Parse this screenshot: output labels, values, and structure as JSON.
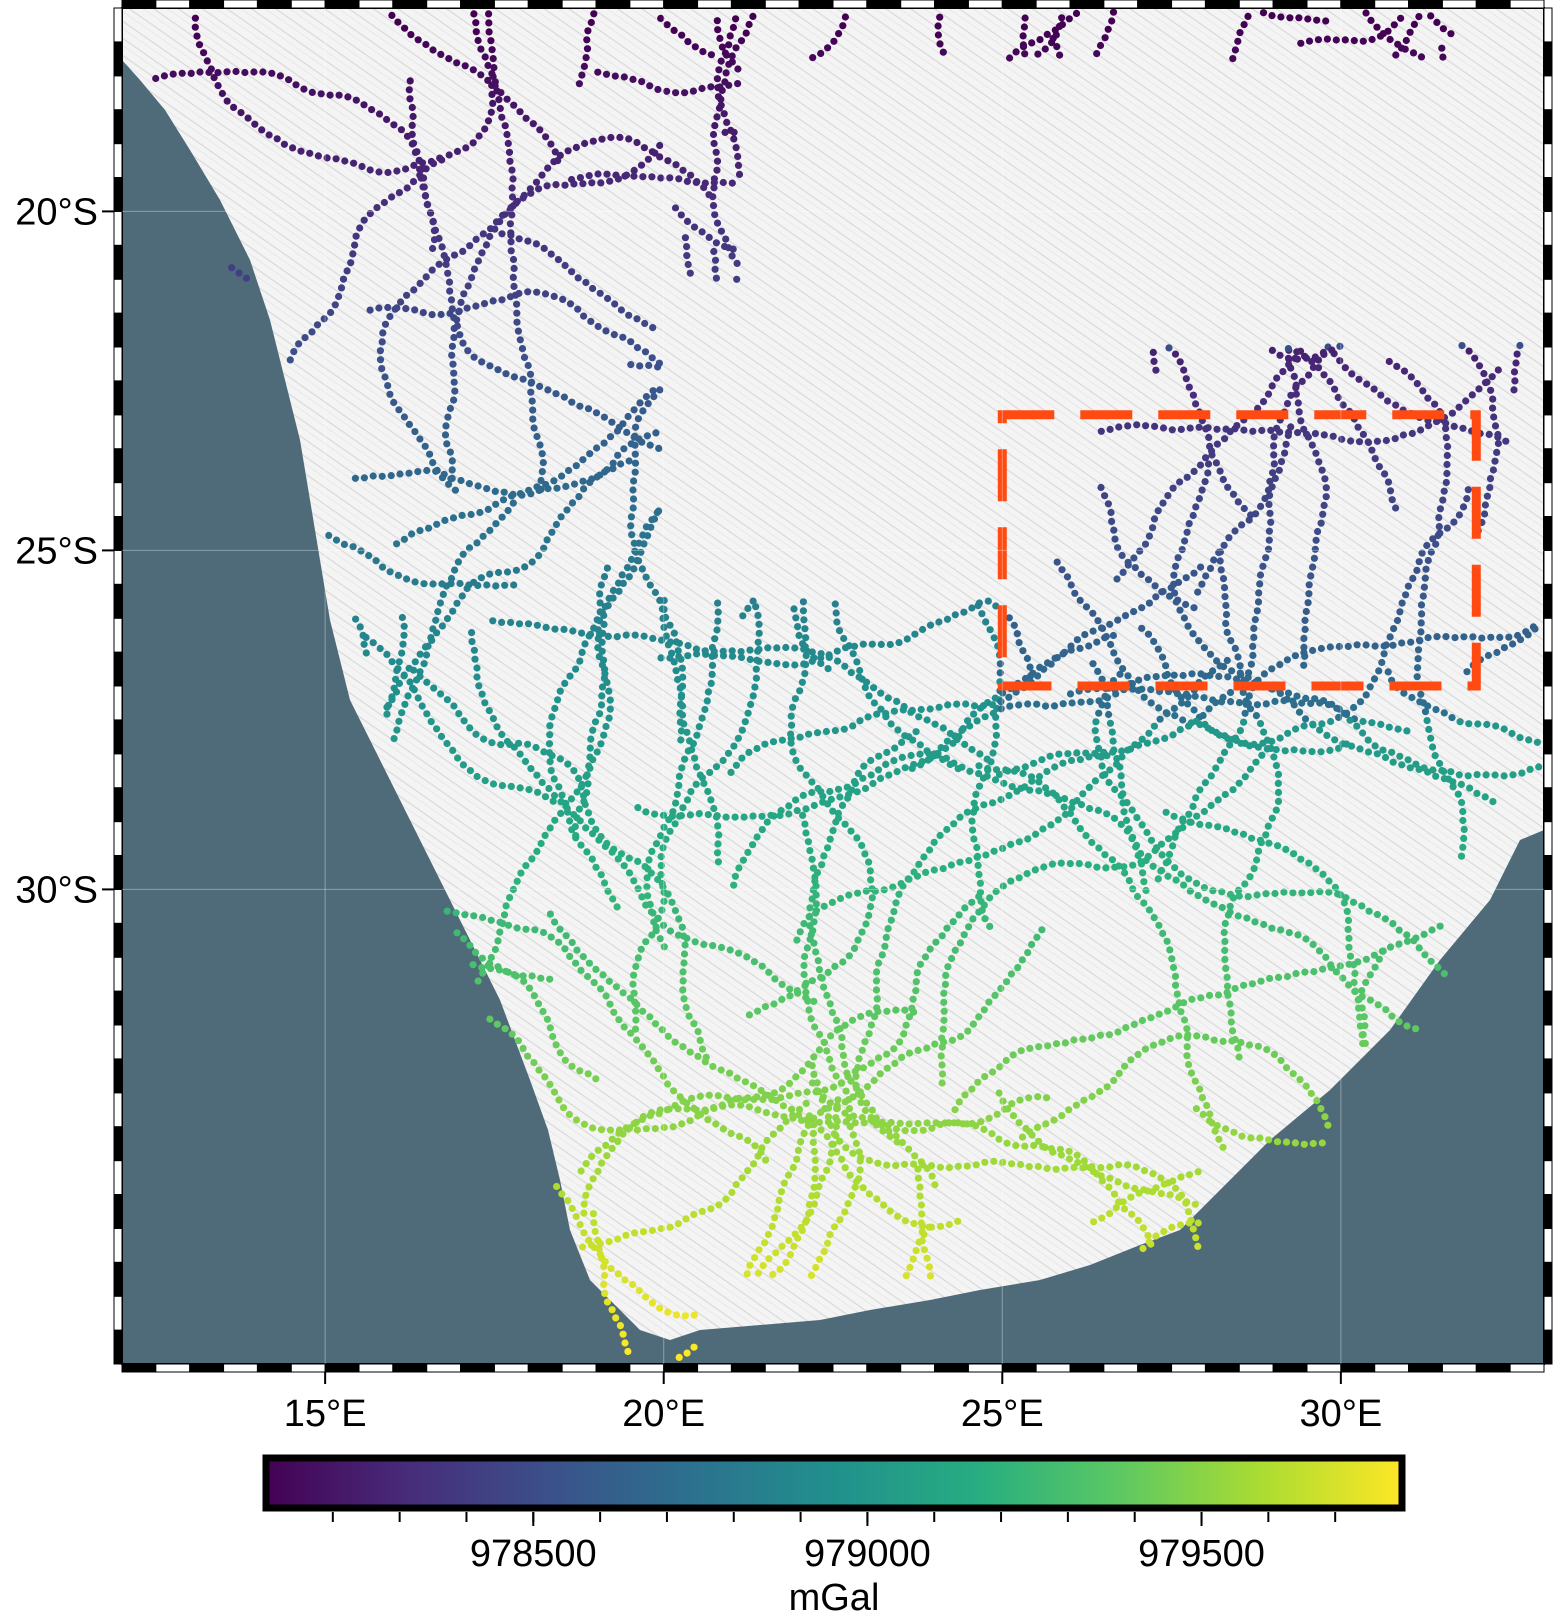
{
  "map": {
    "lon_range": [
      12,
      33
    ],
    "lat_range": [
      -37,
      -17
    ],
    "lon_ticks": [
      {
        "value": 15,
        "label": "15°E"
      },
      {
        "value": 20,
        "label": "20°E"
      },
      {
        "value": 25,
        "label": "25°E"
      },
      {
        "value": 30,
        "label": "30°E"
      }
    ],
    "lat_ticks": [
      {
        "value": -20,
        "label": "20°S"
      },
      {
        "value": -25,
        "label": "25°S"
      },
      {
        "value": -30,
        "label": "30°S"
      }
    ],
    "highlight_box": {
      "lon": [
        25,
        32
      ],
      "lat": [
        -27,
        -23
      ],
      "color": "#ff4a12",
      "style": "dashed"
    },
    "ocean_color": "#4f6b7a",
    "land_color": "#f3f3f3"
  },
  "colorbar": {
    "label": "mGal",
    "range": [
      978100,
      979800
    ],
    "ticks": [
      {
        "value": 978500,
        "label": "978500"
      },
      {
        "value": 979000,
        "label": "979000"
      },
      {
        "value": 979500,
        "label": "979500"
      }
    ],
    "colormap": [
      "#440154",
      "#472c7a",
      "#3b518b",
      "#2c718e",
      "#21908d",
      "#27ad81",
      "#5cc863",
      "#aadc32",
      "#fde725"
    ]
  }
}
